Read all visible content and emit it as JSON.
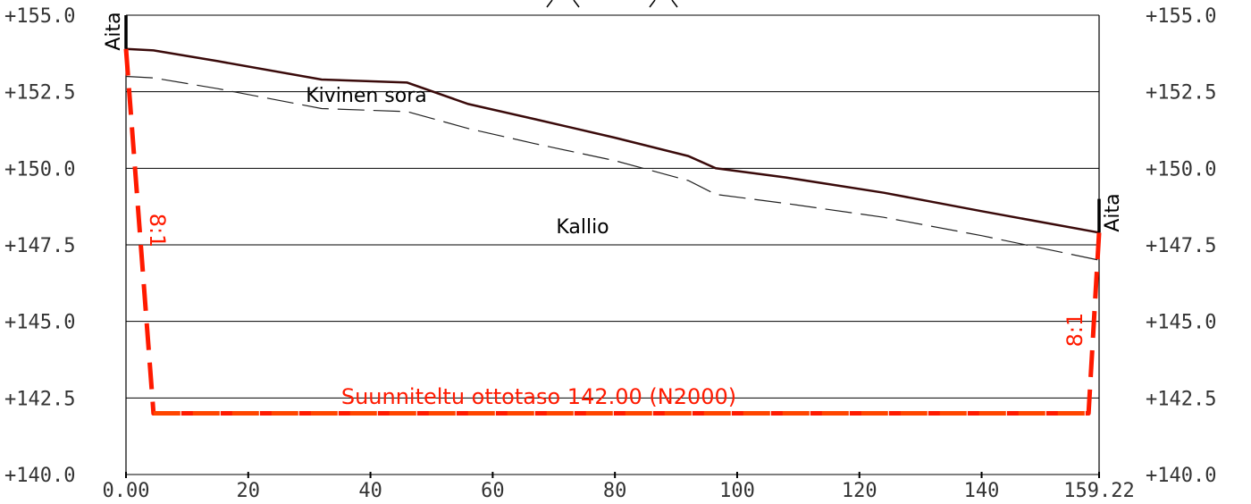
{
  "chart_data": {
    "type": "line",
    "title": "",
    "xlabel": "",
    "ylabel": "",
    "xlim": [
      0,
      159.22
    ],
    "ylim": [
      140.0,
      155.0
    ],
    "x_ticks": [
      {
        "v": 0,
        "label": "0.00"
      },
      {
        "v": 20,
        "label": "20"
      },
      {
        "v": 40,
        "label": "40"
      },
      {
        "v": 60,
        "label": "60"
      },
      {
        "v": 80,
        "label": "80"
      },
      {
        "v": 100,
        "label": "100"
      },
      {
        "v": 120,
        "label": "120"
      },
      {
        "v": 140,
        "label": "140"
      },
      {
        "v": 159.22,
        "label": "159.22"
      }
    ],
    "y_ticks": [
      {
        "v": 155.0,
        "label": "+155.0"
      },
      {
        "v": 152.5,
        "label": "+152.5"
      },
      {
        "v": 150.0,
        "label": "+150.0"
      },
      {
        "v": 147.5,
        "label": "+147.5"
      },
      {
        "v": 145.0,
        "label": "+145.0"
      },
      {
        "v": 142.5,
        "label": "+142.5"
      },
      {
        "v": 140.0,
        "label": "+140.0"
      }
    ],
    "grid": true,
    "colors": {
      "ground": "#3a0a0a",
      "layer": "#222222",
      "plan": "#ff1a00",
      "plan_bottom": "#ff4500",
      "grid": "#000000",
      "fence": "#000000"
    },
    "series": [
      {
        "key": "ground",
        "x": [
          0,
          4.5,
          15,
          32,
          46,
          56,
          67,
          80,
          92,
          96.5,
          108,
          124,
          140,
          159.22
        ],
        "y": [
          153.9,
          153.85,
          153.5,
          152.9,
          152.8,
          152.1,
          151.6,
          151.0,
          150.4,
          150.0,
          149.7,
          149.2,
          148.6,
          147.9
        ]
      },
      {
        "key": "layer",
        "x": [
          0,
          4.5,
          15,
          32,
          46,
          56,
          67,
          80,
          92,
          96.5,
          108,
          124,
          140,
          159.22
        ],
        "y": [
          153.0,
          152.95,
          152.6,
          151.95,
          151.85,
          151.3,
          150.8,
          150.25,
          149.6,
          149.15,
          148.85,
          148.4,
          147.8,
          147.0
        ]
      },
      {
        "key": "plan",
        "x": [
          0,
          4.5,
          157.5,
          159.22
        ],
        "y": [
          153.9,
          142.0,
          142.0,
          147.9
        ]
      }
    ],
    "fences": [
      {
        "x": 0,
        "y0": 153.9,
        "y1": 155.0
      },
      {
        "x": 159.22,
        "y0": 147.9,
        "y1": 149.0
      }
    ],
    "annotations": {
      "fence_left": "Aita",
      "fence_right": "Aita",
      "soil": "Kivinen sora",
      "rock": "Kallio",
      "slope_left": "8:1",
      "slope_right": "8:1",
      "plan_level": "Suunniteltu ottotaso 142.00 (N2000)"
    }
  }
}
